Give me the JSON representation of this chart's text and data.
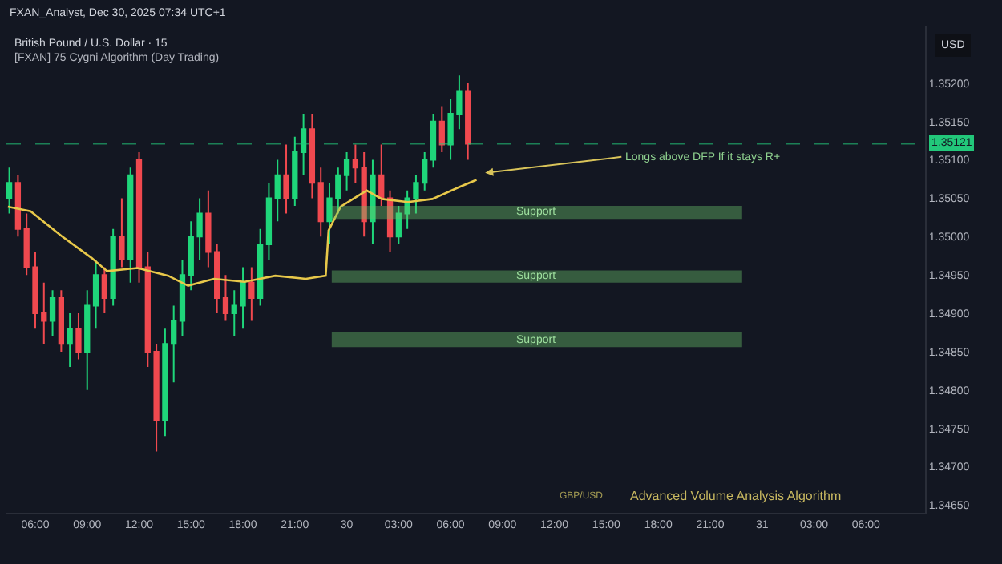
{
  "chart_data": {
    "type": "candlestick",
    "title": "British Pound / U.S. Dollar · 15",
    "subtitle": "[FXAN] 75 Cygni Algorithm (Day Trading)",
    "ylabel": "USD",
    "x": [
      "2025-12-29T04:30",
      "2025-12-29T05:00",
      "2025-12-29T05:30",
      "2025-12-29T06:00",
      "2025-12-29T06:30",
      "2025-12-29T07:00",
      "2025-12-29T07:30",
      "2025-12-29T08:00",
      "2025-12-29T08:30",
      "2025-12-29T09:00",
      "2025-12-29T09:30",
      "2025-12-29T10:00",
      "2025-12-29T10:30",
      "2025-12-29T11:00",
      "2025-12-29T11:30",
      "2025-12-29T12:00",
      "2025-12-29T12:30",
      "2025-12-29T13:00",
      "2025-12-29T13:30",
      "2025-12-29T14:00",
      "2025-12-29T14:30",
      "2025-12-29T15:00",
      "2025-12-29T15:30",
      "2025-12-29T16:00",
      "2025-12-29T16:30",
      "2025-12-29T17:00",
      "2025-12-29T17:30",
      "2025-12-29T18:00",
      "2025-12-29T18:30",
      "2025-12-29T19:00",
      "2025-12-29T19:30",
      "2025-12-29T20:00",
      "2025-12-29T20:30",
      "2025-12-29T21:00",
      "2025-12-29T21:30",
      "2025-12-29T22:00",
      "2025-12-29T22:30",
      "2025-12-29T23:00",
      "2025-12-29T23:30",
      "2025-12-30T00:00",
      "2025-12-30T00:30",
      "2025-12-30T01:00",
      "2025-12-30T01:30",
      "2025-12-30T02:00",
      "2025-12-30T02:30",
      "2025-12-30T03:00",
      "2025-12-30T03:30",
      "2025-12-30T04:00",
      "2025-12-30T04:30",
      "2025-12-30T05:00",
      "2025-12-30T05:30",
      "2025-12-30T06:00",
      "2025-12-30T06:30",
      "2025-12-30T07:00"
    ],
    "ohlc": [
      [
        1.3505,
        1.3509,
        1.3503,
        1.3507
      ],
      [
        1.3507,
        1.3508,
        1.35,
        1.3501
      ],
      [
        1.3501,
        1.3503,
        1.3495,
        1.3496
      ],
      [
        1.3496,
        1.3498,
        1.3488,
        1.349
      ],
      [
        1.349,
        1.3494,
        1.3486,
        1.3489
      ],
      [
        1.3489,
        1.3493,
        1.3487,
        1.3492
      ],
      [
        1.3492,
        1.3493,
        1.3485,
        1.3486
      ],
      [
        1.3486,
        1.349,
        1.3483,
        1.3488
      ],
      [
        1.3488,
        1.349,
        1.3484,
        1.3485
      ],
      [
        1.3485,
        1.3493,
        1.348,
        1.3491
      ],
      [
        1.3491,
        1.3497,
        1.3488,
        1.3495
      ],
      [
        1.3495,
        1.3496,
        1.349,
        1.3492
      ],
      [
        1.3492,
        1.3501,
        1.3491,
        1.35
      ],
      [
        1.35,
        1.3505,
        1.3496,
        1.3497
      ],
      [
        1.3497,
        1.3509,
        1.3494,
        1.3508
      ],
      [
        1.351,
        1.3511,
        1.3494,
        1.3496
      ],
      [
        1.3496,
        1.3498,
        1.3483,
        1.3485
      ],
      [
        1.3485,
        1.3486,
        1.3472,
        1.3476
      ],
      [
        1.3476,
        1.3488,
        1.3474,
        1.3486
      ],
      [
        1.3486,
        1.3491,
        1.3481,
        1.3489
      ],
      [
        1.3489,
        1.3497,
        1.3487,
        1.3495
      ],
      [
        1.3495,
        1.3502,
        1.3493,
        1.35
      ],
      [
        1.35,
        1.3505,
        1.3497,
        1.3503
      ],
      [
        1.3503,
        1.3506,
        1.3496,
        1.3498
      ],
      [
        1.3498,
        1.3499,
        1.349,
        1.3492
      ],
      [
        1.3492,
        1.3495,
        1.3489,
        1.349
      ],
      [
        1.349,
        1.3493,
        1.3487,
        1.3491
      ],
      [
        1.3491,
        1.3496,
        1.3488,
        1.3494
      ],
      [
        1.3494,
        1.3496,
        1.3489,
        1.3492
      ],
      [
        1.3492,
        1.3501,
        1.3491,
        1.3499
      ],
      [
        1.3499,
        1.3507,
        1.3497,
        1.3505
      ],
      [
        1.3505,
        1.351,
        1.3502,
        1.3508
      ],
      [
        1.3508,
        1.3512,
        1.3503,
        1.3505
      ],
      [
        1.3505,
        1.3513,
        1.3504,
        1.3511
      ],
      [
        1.3511,
        1.3516,
        1.3508,
        1.3514
      ],
      [
        1.3514,
        1.3516,
        1.3505,
        1.3507
      ],
      [
        1.3507,
        1.3509,
        1.35,
        1.3502
      ],
      [
        1.3502,
        1.3507,
        1.3499,
        1.3505
      ],
      [
        1.3505,
        1.3509,
        1.3503,
        1.3508
      ],
      [
        1.3508,
        1.3511,
        1.3506,
        1.351
      ],
      [
        1.351,
        1.3512,
        1.3507,
        1.3509
      ],
      [
        1.3509,
        1.3511,
        1.35,
        1.3502
      ],
      [
        1.3502,
        1.351,
        1.3499,
        1.3508
      ],
      [
        1.3508,
        1.3512,
        1.3504,
        1.3505
      ],
      [
        1.3505,
        1.3506,
        1.3498,
        1.35
      ],
      [
        1.35,
        1.3504,
        1.3499,
        1.3503
      ],
      [
        1.3503,
        1.3506,
        1.3501,
        1.3505
      ],
      [
        1.3505,
        1.3508,
        1.3503,
        1.3507
      ],
      [
        1.3507,
        1.3511,
        1.3506,
        1.351
      ],
      [
        1.351,
        1.3516,
        1.3509,
        1.3515
      ],
      [
        1.3515,
        1.3517,
        1.3511,
        1.3512
      ],
      [
        1.3512,
        1.3518,
        1.351,
        1.3516
      ],
      [
        1.3516,
        1.3521,
        1.3514,
        1.3519
      ],
      [
        1.3519,
        1.352,
        1.351,
        1.35121
      ]
    ],
    "series": [
      {
        "type": "line",
        "color": "#e8c84a",
        "x": [
          "2025-12-29T04:25",
          "2025-12-29T05:44",
          "2025-12-29T07:30",
          "2025-12-29T09:16",
          "2025-12-29T10:09",
          "2025-12-29T11:55",
          "2025-12-29T13:41",
          "2025-12-29T14:50",
          "2025-12-29T16:20",
          "2025-12-29T18:06",
          "2025-12-29T19:52",
          "2025-12-29T21:38",
          "2025-12-29T22:47",
          "2025-12-29T22:57",
          "2025-12-29T23:39",
          "2025-12-30T01:09",
          "2025-12-30T02:02",
          "2025-12-30T03:32",
          "2025-12-30T04:57",
          "2025-12-30T06:27",
          "2025-12-30T07:30"
        ],
        "values": [
          1.35039,
          1.35033,
          1.35001,
          1.34972,
          1.34955,
          1.34959,
          1.34949,
          1.34936,
          1.34945,
          1.34941,
          1.34949,
          1.34945,
          1.34949,
          1.35008,
          1.35039,
          1.3506,
          1.35049,
          1.35045,
          1.35049,
          1.35064,
          1.35074
        ]
      }
    ],
    "xlim": [
      "2025-12-29T04:20",
      "2025-12-31T09:25"
    ],
    "xticks": [
      {
        "value": "2025-12-29T06:00",
        "label": "06:00"
      },
      {
        "value": "2025-12-29T09:00",
        "label": "09:00"
      },
      {
        "value": "2025-12-29T12:00",
        "label": "12:00"
      },
      {
        "value": "2025-12-29T15:00",
        "label": "15:00"
      },
      {
        "value": "2025-12-29T18:00",
        "label": "18:00"
      },
      {
        "value": "2025-12-29T21:00",
        "label": "21:00"
      },
      {
        "value": "2025-12-30T00:00",
        "label": "30"
      },
      {
        "value": "2025-12-30T03:00",
        "label": "03:00"
      },
      {
        "value": "2025-12-30T06:00",
        "label": "06:00"
      },
      {
        "value": "2025-12-30T09:00",
        "label": "09:00"
      },
      {
        "value": "2025-12-30T12:00",
        "label": "12:00"
      },
      {
        "value": "2025-12-30T15:00",
        "label": "15:00"
      },
      {
        "value": "2025-12-30T18:00",
        "label": "18:00"
      },
      {
        "value": "2025-12-30T21:00",
        "label": "21:00"
      },
      {
        "value": "2025-12-31T00:00",
        "label": "31"
      },
      {
        "value": "2025-12-31T03:00",
        "label": "03:00"
      },
      {
        "value": "2025-12-31T06:00",
        "label": "06:00"
      }
    ],
    "ylim": [
      1.3464,
      1.35275
    ],
    "yticks": [
      {
        "value": 1.3465,
        "label": "1.34650"
      },
      {
        "value": 1.347,
        "label": "1.34700"
      },
      {
        "value": 1.3475,
        "label": "1.34750"
      },
      {
        "value": 1.348,
        "label": "1.34800"
      },
      {
        "value": 1.3485,
        "label": "1.34850"
      },
      {
        "value": 1.349,
        "label": "1.34900"
      },
      {
        "value": 1.3495,
        "label": "1.34950"
      },
      {
        "value": 1.35,
        "label": "1.35000"
      },
      {
        "value": 1.3505,
        "label": "1.35050"
      },
      {
        "value": 1.351,
        "label": "1.35100"
      },
      {
        "value": 1.3515,
        "label": "1.35150"
      },
      {
        "value": 1.352,
        "label": "1.35200"
      }
    ],
    "ref_lines": [
      {
        "axis": "y",
        "value": 1.35121,
        "label": "1.35121",
        "color": "#22c77a",
        "line_style": "dashed"
      }
    ],
    "annotations": [
      "FXAN_Analyst, Dec 30, 2025 07:34 UTC+1",
      "GBP/USD",
      "Advanced Volume Analysis Algorithm",
      "Longs above DFP If it stays R+"
    ],
    "bands": [
      {
        "axis": "y",
        "from": 1.35024,
        "to": 1.35039,
        "label": "Support",
        "color": "#6cc46c"
      },
      {
        "axis": "y",
        "from": 1.34941,
        "to": 1.34955,
        "label": "Support",
        "color": "#6cc46c"
      },
      {
        "axis": "y",
        "from": 1.34857,
        "to": 1.34874,
        "label": "Support",
        "color": "#6cc46c"
      }
    ],
    "grid": false
  }
}
